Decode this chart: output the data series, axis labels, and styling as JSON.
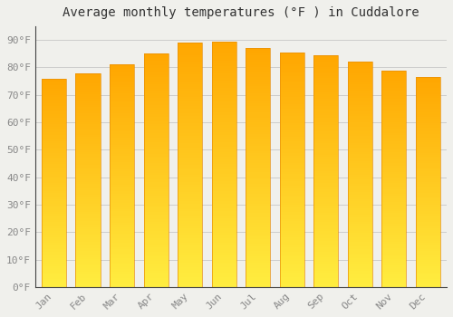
{
  "title": "Average monthly temperatures (°F ) in Cuddalore",
  "months": [
    "Jan",
    "Feb",
    "Mar",
    "Apr",
    "May",
    "Jun",
    "Jul",
    "Aug",
    "Sep",
    "Oct",
    "Nov",
    "Dec"
  ],
  "values": [
    76,
    78,
    81,
    85,
    89,
    89.5,
    87,
    85.5,
    84.5,
    82,
    79,
    76.5
  ],
  "bar_color": "#FFA500",
  "bar_bottom_color": "#FFD040",
  "bg_color": "#F0F0EC",
  "grid_color": "#CCCCCC",
  "spine_color": "#444444",
  "ylim": [
    0,
    95
  ],
  "yticks": [
    0,
    10,
    20,
    30,
    40,
    50,
    60,
    70,
    80,
    90
  ],
  "ytick_labels": [
    "0°F",
    "10°F",
    "20°F",
    "30°F",
    "40°F",
    "50°F",
    "60°F",
    "70°F",
    "80°F",
    "90°F"
  ],
  "title_fontsize": 10,
  "tick_fontsize": 8,
  "tick_color": "#888888",
  "font_family": "monospace"
}
